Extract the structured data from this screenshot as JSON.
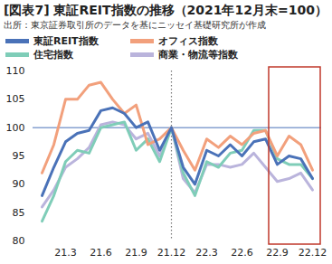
{
  "chart_data": {
    "type": "line",
    "title": "[図表7] 東証REIT指数の推移（2021年12月末=100）",
    "subtitle": "出所：東京証券取引所のデータを基にニッセイ基礎研究所が作成",
    "x": [
      null,
      null,
      "21.3",
      null,
      null,
      "21.6",
      null,
      null,
      "21.9",
      null,
      null,
      "21.12",
      null,
      null,
      "22.3",
      null,
      null,
      "22.6",
      null,
      null,
      "22.9",
      null,
      null,
      "22.12"
    ],
    "series": [
      {
        "name": "東証REIT指数",
        "color": "#4a72b8",
        "values": [
          88,
          93,
          97.5,
          99,
          99.5,
          103,
          103.5,
          102.5,
          100,
          101,
          96,
          100,
          93,
          90,
          96,
          95,
          97,
          95,
          97.5,
          98,
          93.5,
          95,
          94.5,
          91
        ]
      },
      {
        "name": "オフィス指数",
        "color": "#f2a07c",
        "values": [
          92,
          97,
          105,
          105,
          107.5,
          108,
          105,
          102.5,
          104,
          97,
          98,
          100,
          96,
          92.5,
          98,
          96.5,
          98.5,
          97,
          99,
          99.5,
          95,
          98.5,
          97,
          92.5
        ]
      },
      {
        "name": "住宅指数",
        "color": "#7fcdb8",
        "values": [
          83.5,
          88,
          94,
          96,
          95.5,
          100,
          100.5,
          101,
          96,
          98,
          94,
          100,
          92,
          88,
          94,
          93,
          95.5,
          96,
          99.5,
          99.5,
          94.5,
          93.5,
          93.5,
          91
        ]
      },
      {
        "name": "商業・物流等指数",
        "color": "#bab4dc",
        "values": [
          86,
          89,
          93,
          94.5,
          96.5,
          100.5,
          101,
          100.5,
          98,
          99,
          95,
          100,
          91,
          88.5,
          93.5,
          93.5,
          93,
          93.5,
          95.5,
          93,
          90.5,
          91,
          92,
          89
        ]
      }
    ],
    "ylim": [
      80,
      110
    ],
    "yticks": [
      80,
      85,
      90,
      95,
      100,
      105,
      110
    ],
    "grid": false,
    "legend": "top"
  }
}
